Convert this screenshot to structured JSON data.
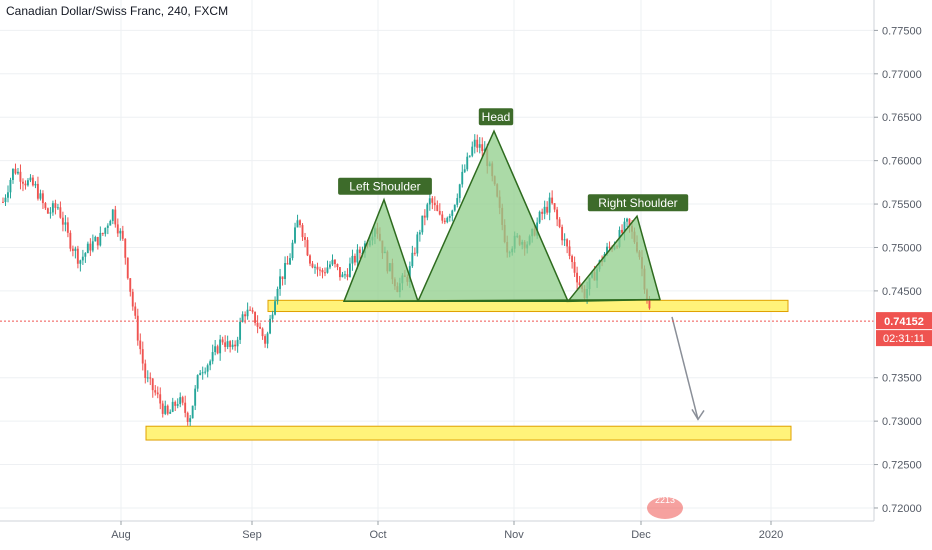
{
  "header": {
    "symbol_title": "Canadian Dollar/Swiss Franc, 240, FXCM"
  },
  "price_axis": {
    "ticks": [
      "0.77500",
      "0.77000",
      "0.76500",
      "0.76000",
      "0.75500",
      "0.75000",
      "0.74500",
      "0.73500",
      "0.73000",
      "0.72500",
      "0.72000"
    ],
    "tick_values": [
      0.775,
      0.77,
      0.765,
      0.76,
      0.755,
      0.75,
      0.745,
      0.735,
      0.73,
      0.725,
      0.72
    ],
    "current_price_label": "0.74152",
    "current_price": 0.74152,
    "countdown_label": "02:31:11",
    "price_color": "#ef5350"
  },
  "time_axis": {
    "labels": [
      "Aug",
      "Sep",
      "Oct",
      "Nov",
      "Dec",
      "2020"
    ]
  },
  "pattern_labels": {
    "left_shoulder": "Left Shoulder",
    "head": "Head",
    "right_shoulder": "Right Shoulder"
  },
  "chart_data": {
    "type": "candlestick",
    "title": "Canadian Dollar/Swiss Franc, 240, FXCM",
    "ylim": [
      0.7185,
      0.7785
    ],
    "price_path": [
      [
        0.7545,
        0.756
      ],
      [
        0.7588,
        0.7595
      ],
      [
        0.7604,
        0.755
      ],
      [
        0.7562,
        0.7575
      ],
      [
        0.7548,
        0.753
      ],
      [
        0.754,
        0.7555
      ],
      [
        0.752,
        0.75
      ],
      [
        0.749,
        0.748
      ],
      [
        0.7495,
        0.751
      ],
      [
        0.7505,
        0.752
      ],
      [
        0.7535,
        0.755
      ],
      [
        0.7528,
        0.748
      ],
      [
        0.744,
        0.74
      ],
      [
        0.737,
        0.733
      ],
      [
        0.731,
        0.735
      ],
      [
        0.732,
        0.729
      ],
      [
        0.731,
        0.734
      ],
      [
        0.7295,
        0.731
      ],
      [
        0.734,
        0.738
      ],
      [
        0.735,
        0.739
      ],
      [
        0.738,
        0.741
      ],
      [
        0.7385,
        0.7375
      ],
      [
        0.7415,
        0.744
      ],
      [
        0.743,
        0.7405
      ],
      [
        0.738,
        0.74
      ],
      [
        0.7445,
        0.747
      ],
      [
        0.746,
        0.75
      ],
      [
        0.752,
        0.755
      ],
      [
        0.7505,
        0.747
      ],
      [
        0.748,
        0.746
      ],
      [
        0.7465,
        0.75
      ],
      [
        0.748,
        0.745
      ],
      [
        0.747,
        0.75
      ],
      [
        0.7485,
        0.752
      ],
      [
        0.751,
        0.7545
      ],
      [
        0.7505,
        0.746
      ],
      [
        0.747,
        0.744
      ],
      [
        0.7455,
        0.748
      ],
      [
        0.75,
        0.754
      ],
      [
        0.756,
        0.755
      ],
      [
        0.754,
        0.752
      ],
      [
        0.753,
        0.756
      ],
      [
        0.757,
        0.76
      ],
      [
        0.761,
        0.763
      ],
      [
        0.762,
        0.76
      ],
      [
        0.758,
        0.754
      ],
      [
        0.751,
        0.749
      ],
      [
        0.75,
        0.752
      ],
      [
        0.751,
        0.75
      ],
      [
        0.752,
        0.755
      ],
      [
        0.7565,
        0.754
      ],
      [
        0.753,
        0.75
      ],
      [
        0.749,
        0.747
      ],
      [
        0.745,
        0.744
      ],
      [
        0.746,
        0.748
      ],
      [
        0.749,
        0.75
      ],
      [
        0.751,
        0.7505
      ],
      [
        0.752,
        0.7535
      ],
      [
        0.7525,
        0.747
      ],
      [
        0.744,
        0.7415
      ]
    ],
    "levels": [
      {
        "name": "neckline-zone",
        "low": 0.7432,
        "high": 0.7438
      },
      {
        "name": "target-zone",
        "low": 0.7284,
        "high": 0.7293
      }
    ],
    "pattern": "head and shoulders"
  },
  "watermark": {
    "text": "2213"
  },
  "colors": {
    "up": "#26a69a",
    "down": "#ef5350",
    "pattern_fill": "#8fce8a",
    "pattern_stroke": "#2e6b1f",
    "label_bg": "#3d6b2a",
    "zone_fill": "#fff37a",
    "zone_stroke": "#e0a000",
    "grid": "#eef0f3"
  }
}
